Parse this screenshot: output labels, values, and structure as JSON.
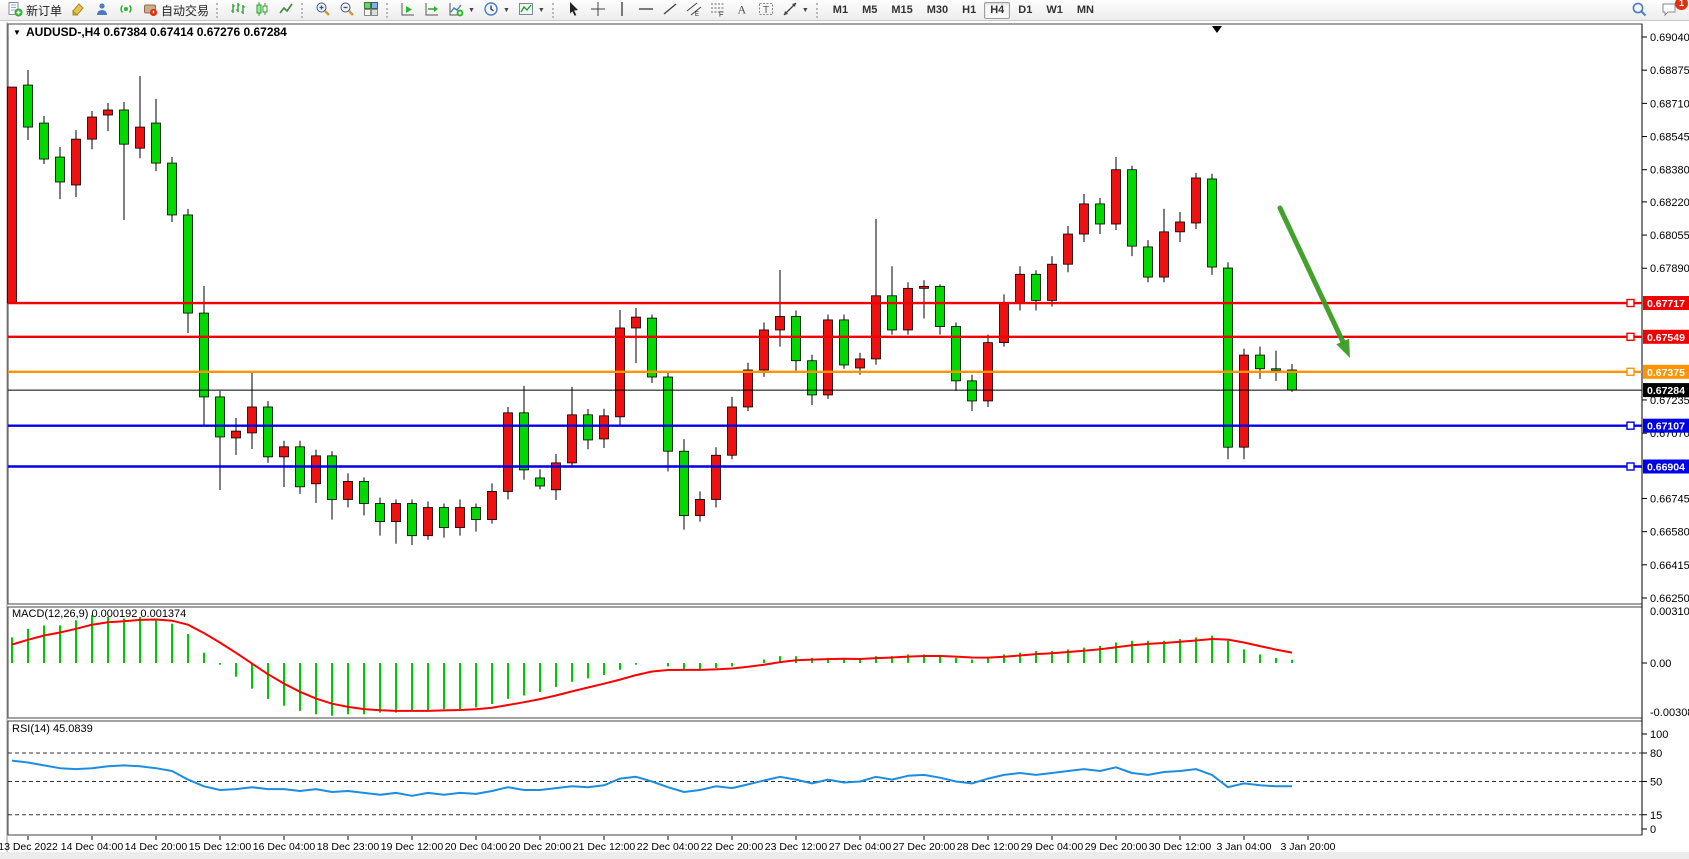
{
  "window": {
    "symbol_title": "AUDUSD-,H4",
    "ohlc_text": "0.67384 0.67414 0.67276 0.67284"
  },
  "toolbar": {
    "groups": [
      {
        "items": [
          {
            "icon": "new-order",
            "label": "新订单"
          },
          {
            "icon": "eraser"
          },
          {
            "icon": "publisher"
          },
          {
            "icon": "signals"
          },
          {
            "icon": "autotrading",
            "label": "自动交易"
          }
        ]
      },
      {
        "items": [
          {
            "icon": "bar-chart"
          },
          {
            "icon": "candlestick-chart"
          },
          {
            "icon": "line-chart"
          }
        ]
      },
      {
        "items": [
          {
            "icon": "zoom-in"
          },
          {
            "icon": "zoom-out"
          },
          {
            "icon": "tile-windows"
          }
        ]
      },
      {
        "items": [
          {
            "icon": "auto-scroll"
          },
          {
            "icon": "chart-shift"
          },
          {
            "icon": "new-chart",
            "caret": true
          },
          {
            "icon": "periods",
            "caret": true
          },
          {
            "icon": "templates",
            "caret": true
          }
        ]
      },
      {
        "items": [
          {
            "icon": "cursor"
          },
          {
            "icon": "crosshair"
          },
          {
            "icon": "vline"
          },
          {
            "icon": "hline"
          },
          {
            "icon": "trendline"
          },
          {
            "icon": "channel"
          },
          {
            "icon": "fibonacci"
          },
          {
            "icon": "text"
          },
          {
            "icon": "text-label"
          },
          {
            "icon": "arrows",
            "caret": true
          }
        ]
      }
    ],
    "timeframes": [
      "M1",
      "M5",
      "M15",
      "M30",
      "H1",
      "H4",
      "D1",
      "W1",
      "MN"
    ],
    "active_timeframe": "H4",
    "chat_badge": "1"
  },
  "chart": {
    "hlines": [
      {
        "price": "0.67717",
        "value": 0.67717,
        "color": "#f00000",
        "kind": "resistance"
      },
      {
        "price": "0.67549",
        "value": 0.67549,
        "color": "#f00000",
        "kind": "resistance"
      },
      {
        "price": "0.67375",
        "value": 0.67375,
        "color": "#ff9400",
        "kind": "pivot"
      },
      {
        "price": "0.67107",
        "value": 0.67107,
        "color": "#0000e8",
        "kind": "support"
      },
      {
        "price": "0.66904",
        "value": 0.66904,
        "color": "#0000e8",
        "kind": "support"
      }
    ],
    "current_price": {
      "label": "0.67284",
      "value": 0.67284,
      "color": "#000000"
    }
  },
  "chart_data": {
    "type": "candlestick",
    "title": "AUDUSD-,H4",
    "symbol": "AUDUSD",
    "timeframe": "H4",
    "bull_color": "#ee1111",
    "bear_color": "#00d800",
    "y_axis_ticks": [
      "0.69040",
      "0.68875",
      "0.68710",
      "0.68545",
      "0.68380",
      "0.68220",
      "0.68055",
      "0.67890",
      "0.67235",
      "0.67070",
      "0.66745",
      "0.66580",
      "0.66415",
      "0.66250"
    ],
    "y_axis_tick_values": [
      0.6904,
      0.68875,
      0.6871,
      0.68545,
      0.6838,
      0.6822,
      0.68055,
      0.6789,
      0.67235,
      0.6707,
      0.66745,
      0.6658,
      0.66415,
      0.6625
    ],
    "ylim": [
      0.6625,
      0.6904
    ],
    "x_tick_labels": [
      "13 Dec 2022",
      "14 Dec 04:00",
      "14 Dec 20:00",
      "15 Dec 12:00",
      "16 Dec 04:00",
      "18 Dec 23:00",
      "19 Dec 12:00",
      "20 Dec 04:00",
      "20 Dec 20:00",
      "21 Dec 12:00",
      "22 Dec 04:00",
      "22 Dec 20:00",
      "23 Dec 12:00",
      "27 Dec 04:00",
      "27 Dec 20:00",
      "28 Dec 12:00",
      "29 Dec 04:00",
      "29 Dec 20:00",
      "30 Dec 12:00",
      "3 Jan 04:00",
      "3 Jan 20:00"
    ],
    "ohlc": [
      [
        0.67717,
        0.68791,
        0.67717,
        0.68791
      ],
      [
        0.68801,
        0.68876,
        0.68527,
        0.68592
      ],
      [
        0.68612,
        0.68647,
        0.68408,
        0.68433
      ],
      [
        0.68443,
        0.68493,
        0.68234,
        0.68319
      ],
      [
        0.68304,
        0.68577,
        0.68244,
        0.68532
      ],
      [
        0.68532,
        0.68672,
        0.68482,
        0.68642
      ],
      [
        0.68652,
        0.68712,
        0.68572,
        0.68677
      ],
      [
        0.68677,
        0.68717,
        0.6813,
        0.68507
      ],
      [
        0.68487,
        0.68846,
        0.68437,
        0.68592
      ],
      [
        0.68612,
        0.68732,
        0.68373,
        0.68413
      ],
      [
        0.68413,
        0.68443,
        0.6812,
        0.68155
      ],
      [
        0.68155,
        0.68185,
        0.67568,
        0.67667
      ],
      [
        0.67667,
        0.67802,
        0.6711,
        0.6725
      ],
      [
        0.6725,
        0.6728,
        0.66787,
        0.67051
      ],
      [
        0.67046,
        0.67146,
        0.66962,
        0.6708
      ],
      [
        0.67071,
        0.67374,
        0.66991,
        0.672
      ],
      [
        0.672,
        0.6723,
        0.66922,
        0.66952
      ],
      [
        0.66952,
        0.67032,
        0.66802,
        0.67002
      ],
      [
        0.67002,
        0.67032,
        0.66768,
        0.66803
      ],
      [
        0.66818,
        0.66987,
        0.66723,
        0.66957
      ],
      [
        0.66957,
        0.6698,
        0.6664,
        0.6674
      ],
      [
        0.6674,
        0.6687,
        0.667,
        0.6683
      ],
      [
        0.6683,
        0.6685,
        0.6666,
        0.6672
      ],
      [
        0.6672,
        0.6675,
        0.6656,
        0.6663
      ],
      [
        0.6663,
        0.6674,
        0.6652,
        0.6672
      ],
      [
        0.6672,
        0.6674,
        0.66513,
        0.6656
      ],
      [
        0.6656,
        0.6673,
        0.6654,
        0.667
      ],
      [
        0.667,
        0.6672,
        0.6655,
        0.666
      ],
      [
        0.666,
        0.6674,
        0.6656,
        0.667
      ],
      [
        0.667,
        0.6672,
        0.6658,
        0.6664
      ],
      [
        0.6664,
        0.6682,
        0.6662,
        0.6678
      ],
      [
        0.6678,
        0.672,
        0.6674,
        0.67171
      ],
      [
        0.67171,
        0.67305,
        0.66838,
        0.66887
      ],
      [
        0.66847,
        0.6689,
        0.6679,
        0.66807
      ],
      [
        0.66788,
        0.66967,
        0.66738,
        0.66922
      ],
      [
        0.66922,
        0.673,
        0.669,
        0.67161
      ],
      [
        0.67161,
        0.6719,
        0.6699,
        0.67036
      ],
      [
        0.67041,
        0.67191,
        0.66996,
        0.67156
      ],
      [
        0.67151,
        0.67682,
        0.67106,
        0.67593
      ],
      [
        0.67593,
        0.67692,
        0.67418,
        0.67647
      ],
      [
        0.67642,
        0.6766,
        0.67319,
        0.67349
      ],
      [
        0.67349,
        0.6737,
        0.6688,
        0.6698
      ],
      [
        0.6698,
        0.6704,
        0.6659,
        0.6666
      ],
      [
        0.6666,
        0.6678,
        0.6663,
        0.6674
      ],
      [
        0.6674,
        0.67,
        0.667,
        0.6696
      ],
      [
        0.6696,
        0.6725,
        0.6694,
        0.672
      ],
      [
        0.672,
        0.6742,
        0.6718,
        0.67384
      ],
      [
        0.67384,
        0.6762,
        0.6735,
        0.67583
      ],
      [
        0.67583,
        0.67881,
        0.675,
        0.6765
      ],
      [
        0.6765,
        0.6768,
        0.6738,
        0.6743
      ],
      [
        0.6743,
        0.6746,
        0.6721,
        0.6726
      ],
      [
        0.6726,
        0.6766,
        0.6724,
        0.67633
      ],
      [
        0.67633,
        0.6766,
        0.6739,
        0.67409
      ],
      [
        0.67394,
        0.6747,
        0.6736,
        0.67439
      ],
      [
        0.67439,
        0.68135,
        0.6741,
        0.67753
      ],
      [
        0.67753,
        0.679,
        0.6756,
        0.67583
      ],
      [
        0.67583,
        0.6782,
        0.6756,
        0.6779
      ],
      [
        0.6779,
        0.6783,
        0.6764,
        0.678
      ],
      [
        0.678,
        0.6781,
        0.6756,
        0.676
      ],
      [
        0.676,
        0.6762,
        0.6728,
        0.6733
      ],
      [
        0.6733,
        0.6736,
        0.6718,
        0.6723
      ],
      [
        0.6723,
        0.6756,
        0.672,
        0.6752
      ],
      [
        0.6752,
        0.6776,
        0.675,
        0.6772
      ],
      [
        0.6772,
        0.679,
        0.6768,
        0.6786
      ],
      [
        0.6786,
        0.6788,
        0.6768,
        0.6773
      ],
      [
        0.6773,
        0.6795,
        0.677,
        0.6791
      ],
      [
        0.6791,
        0.681,
        0.6787,
        0.6806
      ],
      [
        0.6806,
        0.6826,
        0.6802,
        0.6821
      ],
      [
        0.6821,
        0.6824,
        0.6806,
        0.6811
      ],
      [
        0.6811,
        0.68443,
        0.6808,
        0.6838
      ],
      [
        0.6838,
        0.684,
        0.6795,
        0.68
      ],
      [
        0.67996,
        0.6803,
        0.6782,
        0.67846
      ],
      [
        0.67846,
        0.68186,
        0.6782,
        0.68071
      ],
      [
        0.68071,
        0.6817,
        0.6802,
        0.6812
      ],
      [
        0.68115,
        0.68364,
        0.68085,
        0.68339
      ],
      [
        0.68334,
        0.6836,
        0.67857,
        0.67896
      ],
      [
        0.67891,
        0.6792,
        0.6694,
        0.67
      ],
      [
        0.67,
        0.6749,
        0.6694,
        0.67458
      ],
      [
        0.67458,
        0.675,
        0.6734,
        0.6739
      ],
      [
        0.6739,
        0.6748,
        0.6733,
        0.67384
      ],
      [
        0.67384,
        0.67414,
        0.67276,
        0.67284
      ]
    ],
    "macd": {
      "label": "MACD(12,26,9)",
      "main_value": "0.000192",
      "signal_value": "0.001374",
      "axis_max": "0.003105",
      "axis_zero": "0.00",
      "axis_min": "-0.003089",
      "histogram_color": "#00c800",
      "signal_color": "#ff0000",
      "values": [
        0.0015,
        0.002,
        0.0022,
        0.0022,
        0.0025,
        0.0028,
        0.0027,
        0.0026,
        0.0027,
        0.0026,
        0.0023,
        0.0017,
        0.0006,
        -0.0001,
        -0.0008,
        -0.0015,
        -0.0021,
        -0.0025,
        -0.0028,
        -0.003,
        -0.003089,
        -0.003,
        -0.003,
        -0.0029,
        -0.0029,
        -0.0028,
        -0.0028,
        -0.0027,
        -0.0027,
        -0.0026,
        -0.0024,
        -0.0021,
        -0.0019,
        -0.0017,
        -0.0014,
        -0.0011,
        -0.0009,
        -0.0007,
        -0.0004,
        -0.0001,
        0.0,
        -0.0002,
        -0.0004,
        -0.0004,
        -0.0003,
        -0.0002,
        0.0,
        0.0002,
        0.0004,
        0.0004,
        0.0003,
        0.0003,
        0.0003,
        0.0002,
        0.0004,
        0.0004,
        0.0005,
        0.0005,
        0.0004,
        0.0003,
        0.0002,
        0.0003,
        0.0005,
        0.0006,
        0.0007,
        0.0007,
        0.0008,
        0.0009,
        0.001,
        0.0012,
        0.0013,
        0.0013,
        0.0013,
        0.0014,
        0.0015,
        0.0016,
        0.0013,
        0.0008,
        0.0005,
        0.0003,
        0.000192
      ]
    },
    "rsi": {
      "label": "RSI(14)",
      "value": "45.0839",
      "line_color": "#1d8de0",
      "levels": [
        "100",
        "80",
        "50",
        "15",
        "0"
      ],
      "level_values": [
        100,
        80,
        50,
        15,
        0
      ],
      "dashed_levels": [
        80,
        50,
        15
      ],
      "values": [
        72,
        70,
        67,
        64,
        63,
        64,
        66,
        67,
        66,
        64,
        61,
        52,
        45,
        41,
        42,
        44,
        42,
        42,
        40,
        42,
        39,
        40,
        38,
        36,
        38,
        35,
        38,
        36,
        38,
        37,
        40,
        44,
        41,
        41,
        43,
        45,
        44,
        46,
        53,
        55,
        50,
        44,
        39,
        41,
        45,
        43,
        47,
        51,
        55,
        52,
        48,
        52,
        49,
        50,
        55,
        52,
        56,
        57,
        54,
        50,
        48,
        53,
        57,
        59,
        57,
        59,
        61,
        63,
        61,
        65,
        59,
        57,
        60,
        61,
        63,
        57,
        44,
        48,
        46,
        45,
        45.0839
      ]
    }
  },
  "annotation": {
    "arrow_color": "#3a9d23"
  }
}
